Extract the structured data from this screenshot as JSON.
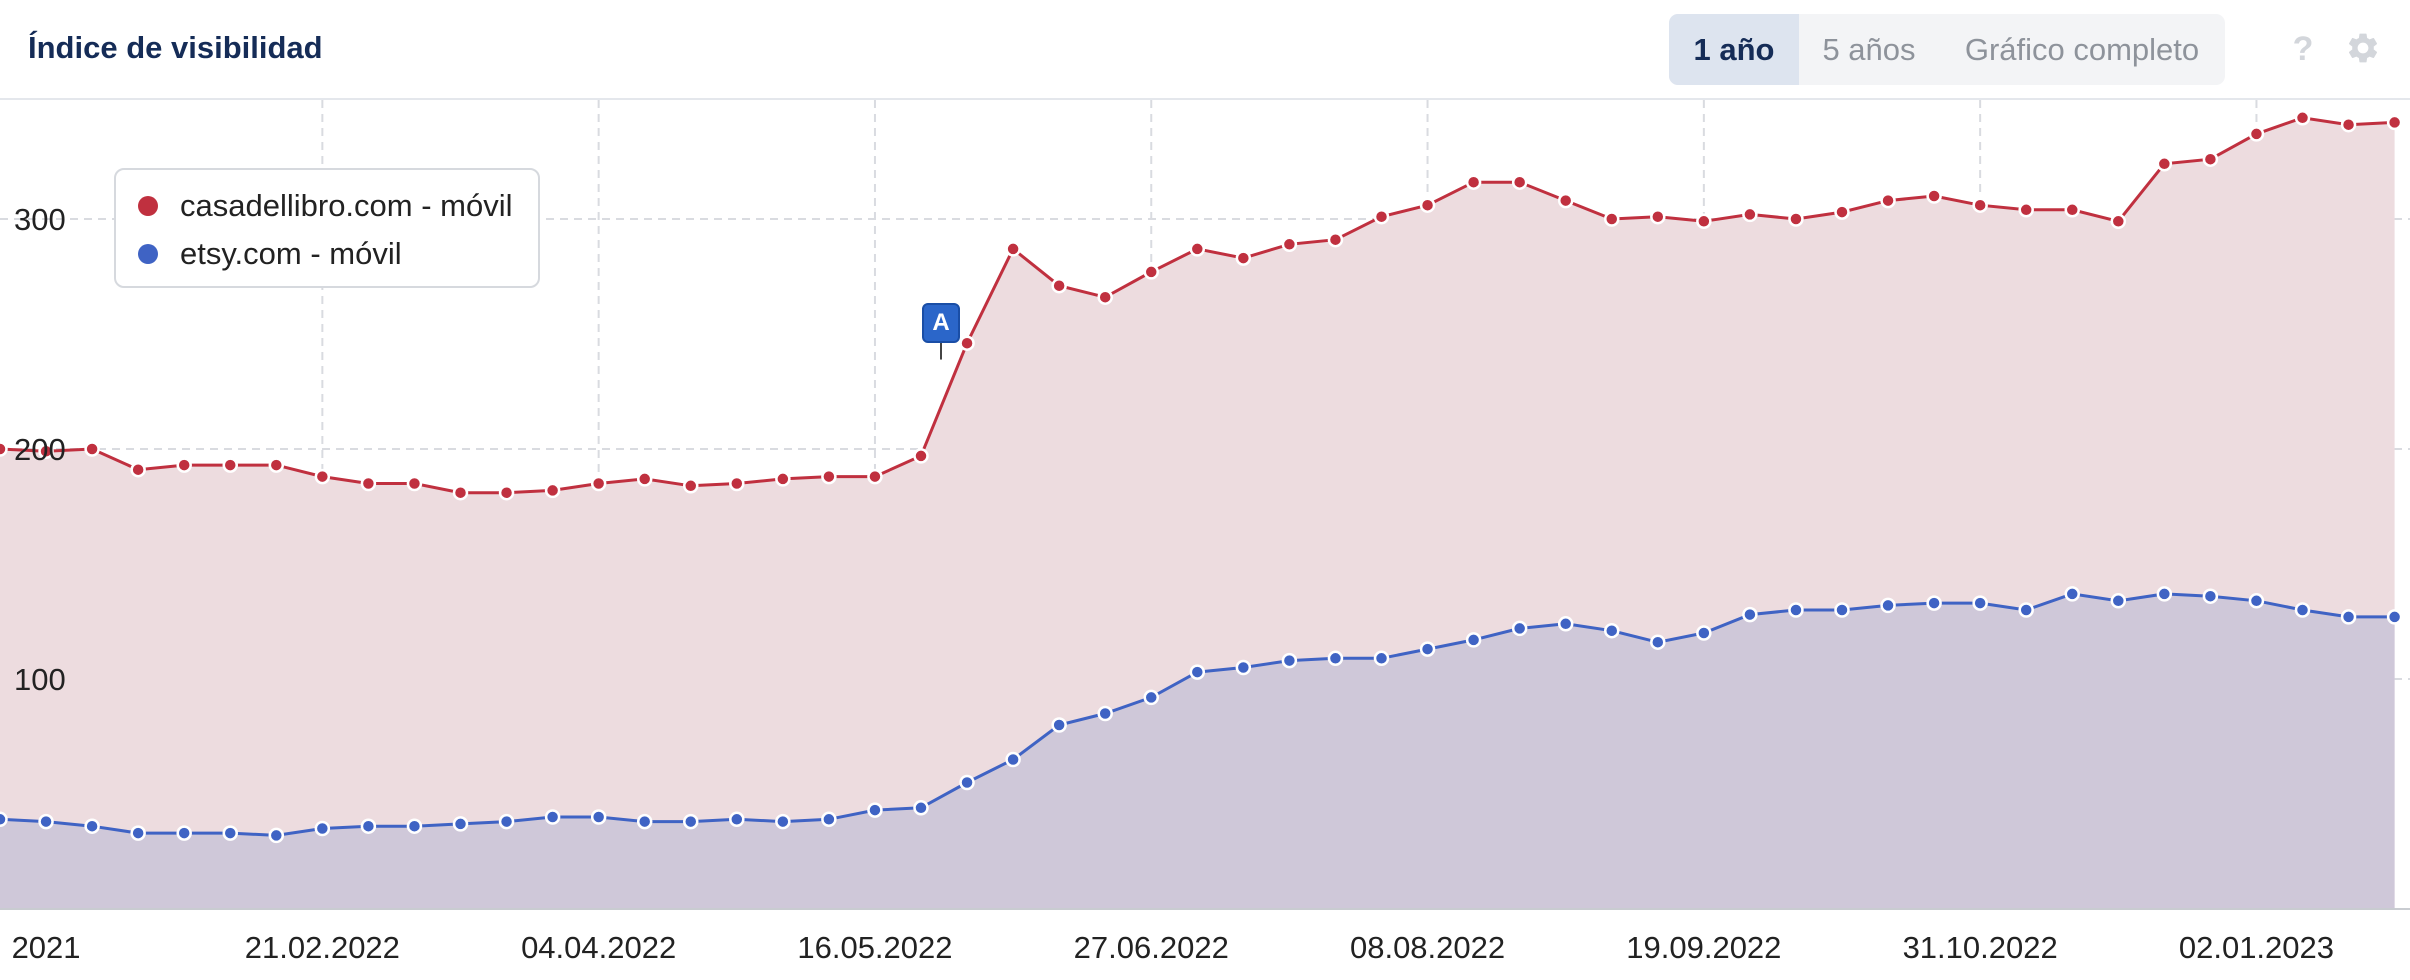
{
  "header": {
    "title": "Índice de visibilidad",
    "tabs": [
      {
        "label": "1 año",
        "active": true
      },
      {
        "label": "5 años",
        "active": false
      },
      {
        "label": "Gráfico completo",
        "active": false
      }
    ],
    "help_label": "?",
    "help_icon": "question-mark-icon",
    "settings_icon": "gear-icon"
  },
  "chart_data": {
    "type": "area",
    "title": "",
    "xlabel": "",
    "ylabel": "",
    "y_ticks": [
      100,
      200,
      300
    ],
    "ylim": [
      0,
      350
    ],
    "x_tick_labels": [
      "2021",
      "21.02.2022",
      "04.04.2022",
      "16.05.2022",
      "27.06.2022",
      "08.08.2022",
      "19.09.2022",
      "31.10.2022",
      "02.01.2023"
    ],
    "grid": true,
    "legend_position": "top-left",
    "series": [
      {
        "name": "casadellibro.com - móvil",
        "color": "#c0303f",
        "fill": "#eddcdf",
        "values": [
          200,
          199,
          200,
          191,
          193,
          193,
          193,
          188,
          185,
          185,
          181,
          181,
          182,
          185,
          187,
          184,
          185,
          187,
          188,
          188,
          197,
          246,
          287,
          271,
          266,
          277,
          287,
          283,
          289,
          291,
          301,
          306,
          316,
          316,
          308,
          300,
          301,
          299,
          302,
          300,
          303,
          308,
          310,
          306,
          304,
          304,
          299,
          324,
          326,
          337,
          344,
          341,
          342
        ]
      },
      {
        "name": "etsy.com - móvil",
        "color": "#3f63c4",
        "fill": "#cfc8d9",
        "values": [
          39,
          38,
          36,
          33,
          33,
          33,
          32,
          35,
          36,
          36,
          37,
          38,
          40,
          40,
          38,
          38,
          39,
          38,
          39,
          43,
          44,
          55,
          65,
          80,
          85,
          92,
          103,
          105,
          108,
          109,
          109,
          113,
          117,
          122,
          124,
          121,
          116,
          120,
          128,
          130,
          130,
          132,
          133,
          133,
          130,
          137,
          134,
          137,
          136,
          134,
          130,
          127,
          127
        ]
      }
    ],
    "annotations": [
      {
        "label": "A",
        "index": 20
      }
    ]
  }
}
